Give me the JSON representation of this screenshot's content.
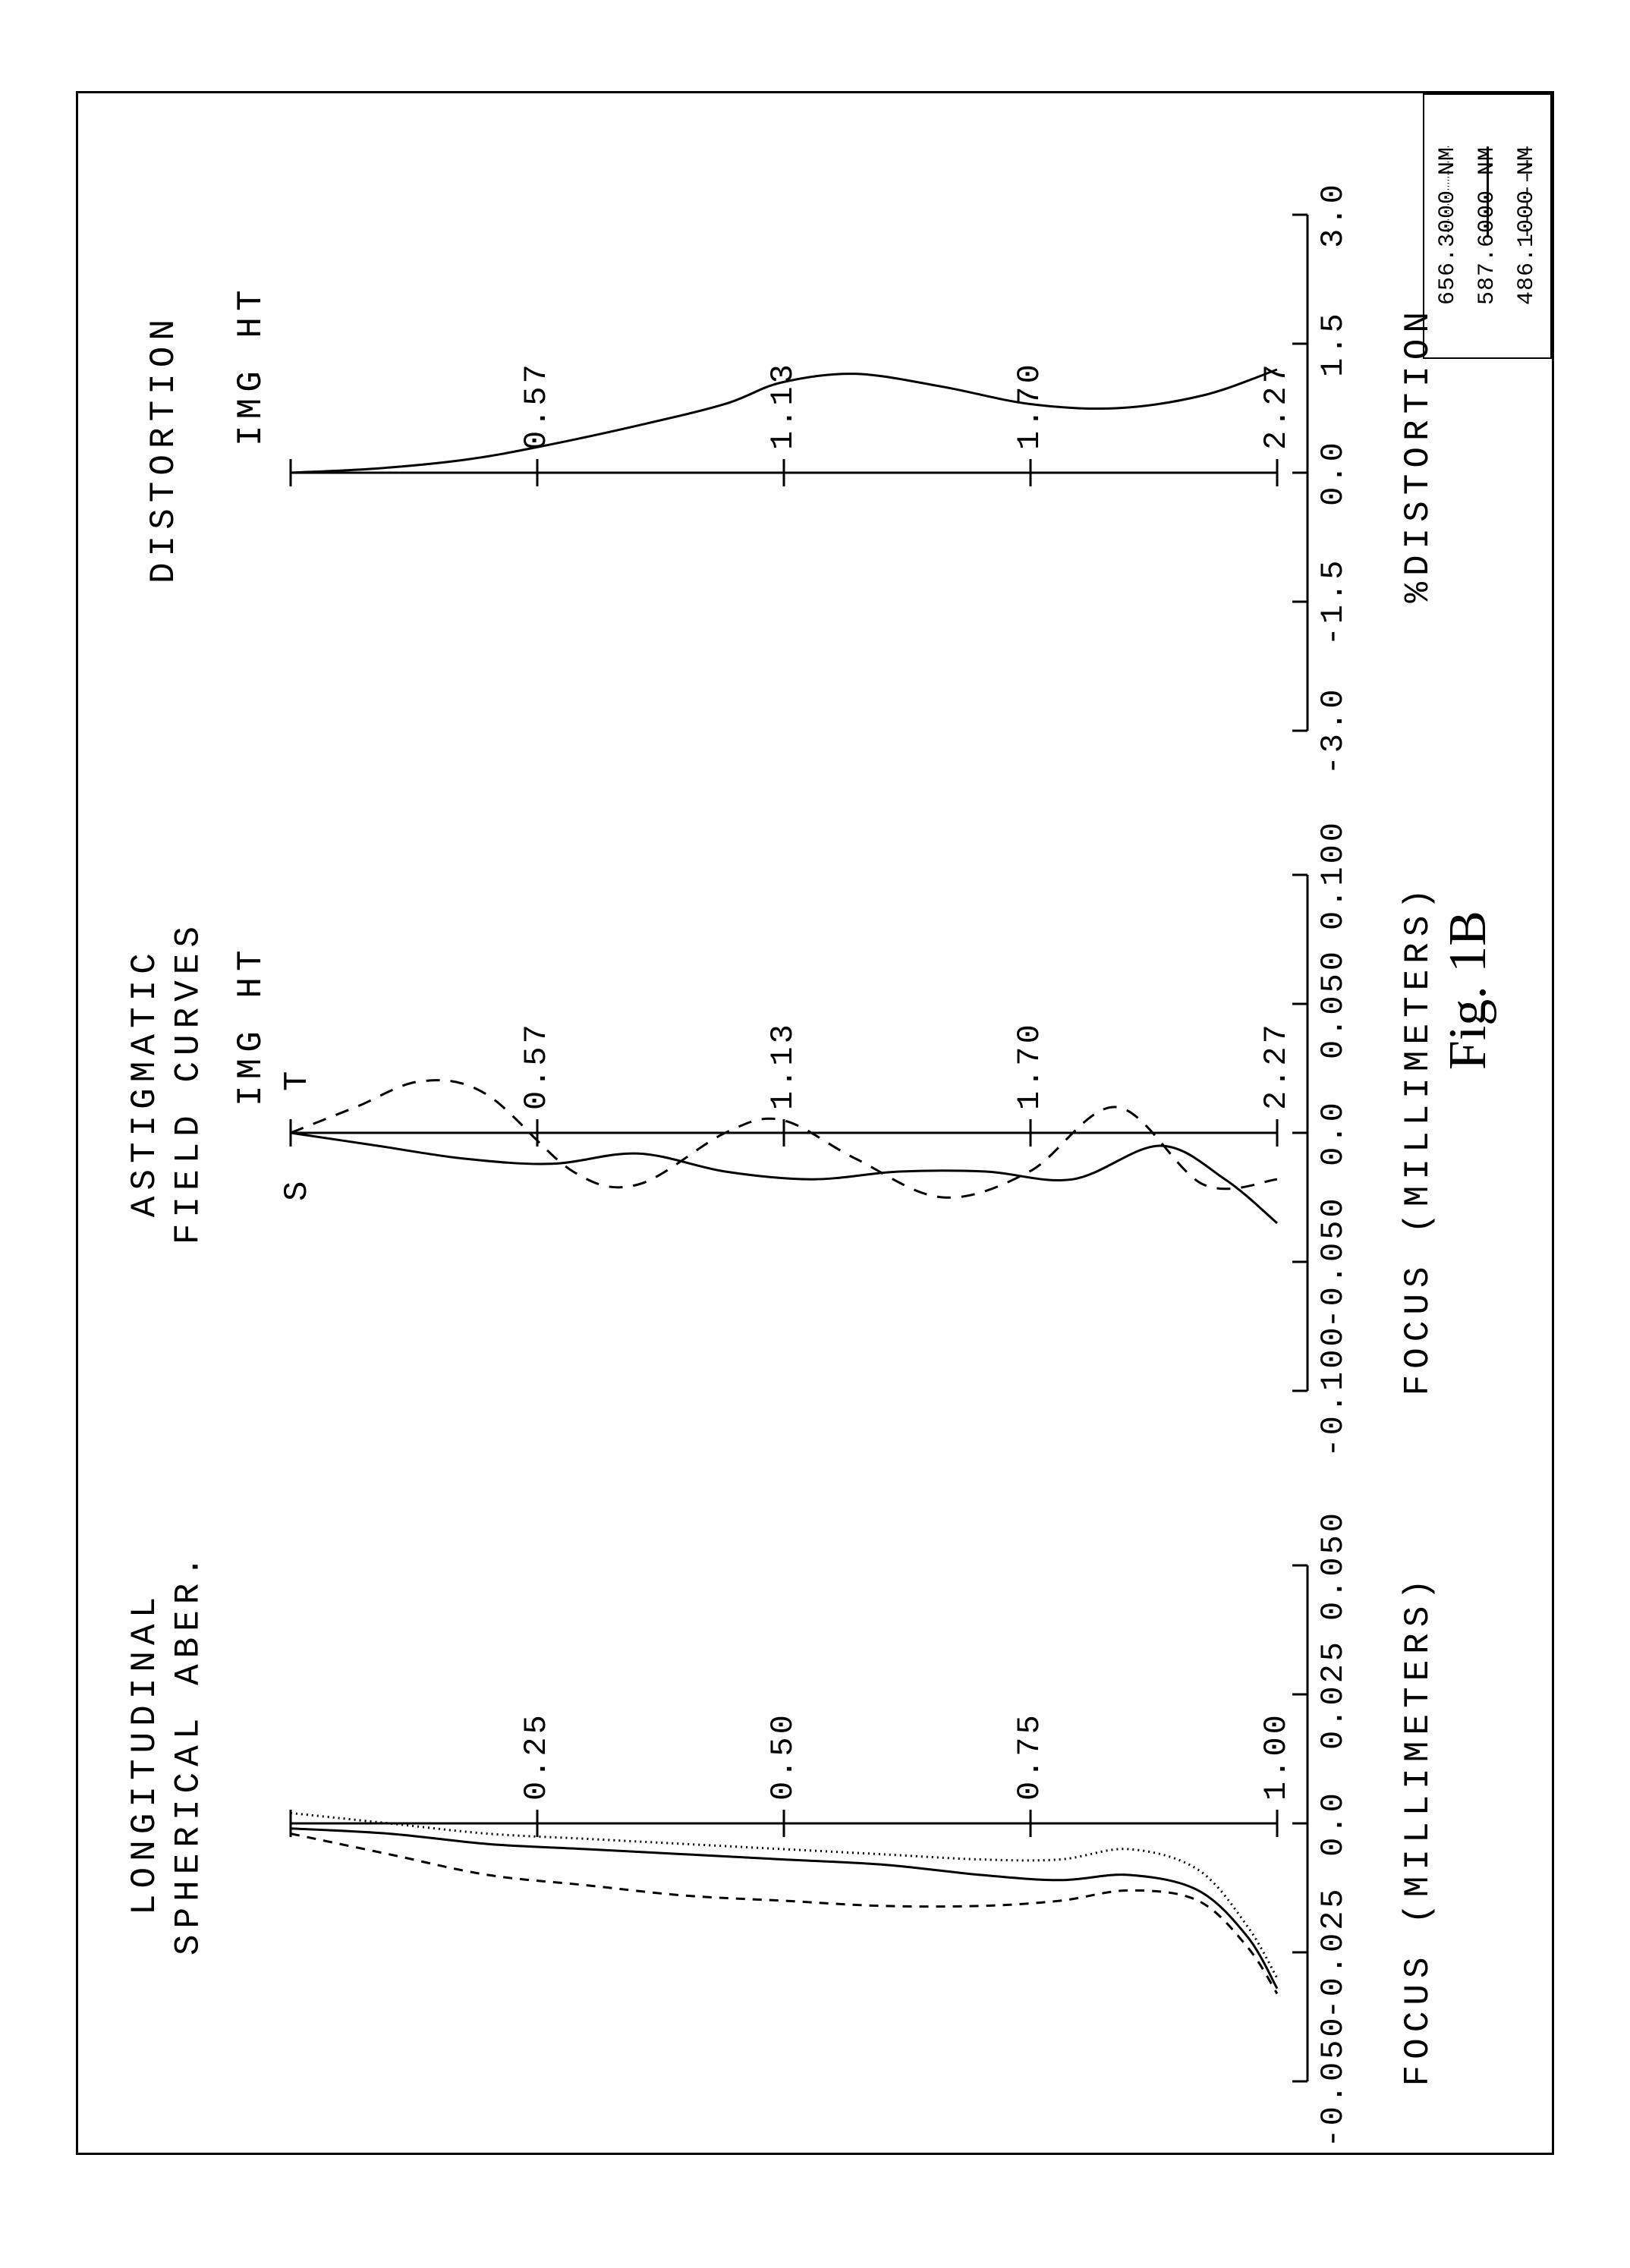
{
  "figure_label": "Fig. 1B",
  "background_color": "#ffffff",
  "stroke_color": "#000000",
  "font_family_mono": "Courier New",
  "font_family_serif": "Times New Roman",
  "legend": {
    "items": [
      {
        "label": "656.3000 NM",
        "dash": "1,3"
      },
      {
        "label": "587.6000 NM",
        "dash": ""
      },
      {
        "label": "486.1000 NM",
        "dash": "10,8"
      }
    ]
  },
  "charts": {
    "spherical": {
      "title": "LONGITUDINAL\nSPHERICAL ABER.",
      "x_label": "FOCUS (MILLIMETERS)",
      "x_ticks": [
        "-0.050",
        "-0.025",
        "0.0",
        "0.025",
        "0.050"
      ],
      "y_label_top": "",
      "y_ticks": [
        "1.00",
        "0.75",
        "0.50",
        "0.25"
      ],
      "xlim": [
        -0.05,
        0.05
      ],
      "ylim": [
        0,
        1.0
      ],
      "axis_stroke_width": 3,
      "curve_stroke_width": 3,
      "series": [
        {
          "name": "656nm",
          "dash": "2,5",
          "points": [
            [
              0.002,
              0.0
            ],
            [
              0.0,
              0.1
            ],
            [
              -0.002,
              0.2
            ],
            [
              -0.003,
              0.3
            ],
            [
              -0.004,
              0.4
            ],
            [
              -0.005,
              0.5
            ],
            [
              -0.006,
              0.6
            ],
            [
              -0.007,
              0.7
            ],
            [
              -0.007,
              0.78
            ],
            [
              -0.005,
              0.85
            ],
            [
              -0.009,
              0.92
            ],
            [
              -0.02,
              0.97
            ],
            [
              -0.03,
              1.0
            ]
          ]
        },
        {
          "name": "587nm",
          "dash": "",
          "points": [
            [
              -0.001,
              0.0
            ],
            [
              -0.002,
              0.1
            ],
            [
              -0.004,
              0.2
            ],
            [
              -0.005,
              0.3
            ],
            [
              -0.006,
              0.4
            ],
            [
              -0.007,
              0.5
            ],
            [
              -0.008,
              0.6
            ],
            [
              -0.01,
              0.7
            ],
            [
              -0.011,
              0.78
            ],
            [
              -0.01,
              0.85
            ],
            [
              -0.013,
              0.92
            ],
            [
              -0.022,
              0.97
            ],
            [
              -0.032,
              1.0
            ]
          ]
        },
        {
          "name": "486nm",
          "dash": "12,10",
          "points": [
            [
              -0.002,
              0.0
            ],
            [
              -0.006,
              0.1
            ],
            [
              -0.01,
              0.2
            ],
            [
              -0.012,
              0.3
            ],
            [
              -0.014,
              0.4
            ],
            [
              -0.015,
              0.5
            ],
            [
              -0.016,
              0.6
            ],
            [
              -0.016,
              0.7
            ],
            [
              -0.015,
              0.78
            ],
            [
              -0.013,
              0.85
            ],
            [
              -0.015,
              0.92
            ],
            [
              -0.024,
              0.97
            ],
            [
              -0.033,
              1.0
            ]
          ]
        }
      ]
    },
    "astigmatic": {
      "title": "ASTIGMATIC\nFIELD CURVES",
      "x_label": "FOCUS (MILLIMETERS)",
      "y_label_top": "IMG HT",
      "s_label": "S",
      "t_label": "T",
      "x_ticks": [
        "-0.100",
        "-0.050",
        "0.0",
        "0.050",
        "0.100"
      ],
      "y_ticks": [
        "2.27",
        "1.70",
        "1.13",
        "0.57"
      ],
      "xlim": [
        -0.1,
        0.1
      ],
      "ylim": [
        0,
        2.27
      ],
      "axis_stroke_width": 3,
      "curve_stroke_width": 3,
      "series": [
        {
          "name": "S",
          "dash": "",
          "points": [
            [
              0.0,
              0.0
            ],
            [
              -0.005,
              0.2
            ],
            [
              -0.01,
              0.4
            ],
            [
              -0.012,
              0.6
            ],
            [
              -0.008,
              0.8
            ],
            [
              -0.015,
              1.0
            ],
            [
              -0.018,
              1.2
            ],
            [
              -0.015,
              1.4
            ],
            [
              -0.015,
              1.6
            ],
            [
              -0.018,
              1.8
            ],
            [
              -0.005,
              2.0
            ],
            [
              -0.018,
              2.15
            ],
            [
              -0.035,
              2.27
            ]
          ]
        },
        {
          "name": "T",
          "dash": "18,14",
          "points": [
            [
              0.0,
              0.0
            ],
            [
              0.01,
              0.15
            ],
            [
              0.02,
              0.3
            ],
            [
              0.015,
              0.45
            ],
            [
              -0.015,
              0.65
            ],
            [
              -0.02,
              0.8
            ],
            [
              0.0,
              1.0
            ],
            [
              0.005,
              1.13
            ],
            [
              -0.01,
              1.3
            ],
            [
              -0.025,
              1.5
            ],
            [
              -0.015,
              1.7
            ],
            [
              0.01,
              1.9
            ],
            [
              -0.02,
              2.1
            ],
            [
              -0.018,
              2.27
            ]
          ]
        }
      ]
    },
    "distortion": {
      "title": "DISTORTION",
      "x_label": "%DISTORTION",
      "y_label_top": "IMG HT",
      "x_ticks": [
        "-3.0",
        "-1.5",
        "0.0",
        "1.5",
        "3.0"
      ],
      "y_ticks": [
        "2.27",
        "1.70",
        "1.13",
        "0.57"
      ],
      "xlim": [
        -3.0,
        3.0
      ],
      "ylim": [
        0,
        2.27
      ],
      "axis_stroke_width": 3,
      "curve_stroke_width": 3,
      "series": [
        {
          "name": "distortion",
          "dash": "",
          "points": [
            [
              0.0,
              0.0
            ],
            [
              0.05,
              0.2
            ],
            [
              0.15,
              0.4
            ],
            [
              0.3,
              0.57
            ],
            [
              0.55,
              0.8
            ],
            [
              0.8,
              1.0
            ],
            [
              1.05,
              1.13
            ],
            [
              1.15,
              1.3
            ],
            [
              1.0,
              1.5
            ],
            [
              0.8,
              1.7
            ],
            [
              0.75,
              1.9
            ],
            [
              0.9,
              2.1
            ],
            [
              1.2,
              2.27
            ]
          ]
        }
      ]
    }
  }
}
